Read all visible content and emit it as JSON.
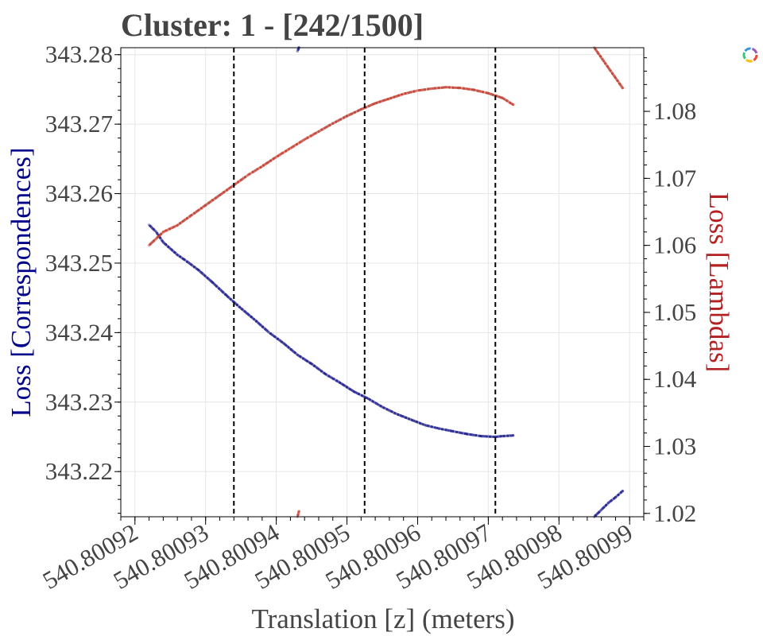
{
  "chart_data": {
    "type": "scatter",
    "title": "Cluster: 1 - [242/1500]",
    "xlabel": "Translation [z] (meters)",
    "ylabel_left": "Loss [Correspondences]",
    "ylabel_right": "Loss [Lambdas]",
    "xlim": [
      540.800918,
      540.800992
    ],
    "ylim_left": [
      343.2135,
      343.281
    ],
    "ylim_right": [
      1.0195,
      1.0895
    ],
    "x_ticks": [
      540.80092,
      540.80093,
      540.80094,
      540.80095,
      540.80096,
      540.80097,
      540.80098,
      540.80099
    ],
    "x_tick_labels": [
      "540.80092",
      "540.80093",
      "540.80094",
      "540.80095",
      "540.80096",
      "540.80097",
      "540.80098",
      "540.80099"
    ],
    "y_left_ticks": [
      343.22,
      343.23,
      343.24,
      343.25,
      343.26,
      343.27,
      343.28
    ],
    "y_left_tick_labels": [
      "343.22",
      "343.23",
      "343.24",
      "343.25",
      "343.26",
      "343.27",
      "343.28"
    ],
    "y_right_ticks": [
      1.02,
      1.03,
      1.04,
      1.05,
      1.06,
      1.07,
      1.08
    ],
    "y_right_tick_labels": [
      "1.02",
      "1.03",
      "1.04",
      "1.05",
      "1.06",
      "1.07",
      "1.08"
    ],
    "grid": true,
    "vlines": [
      540.800934,
      540.8009525,
      540.800971
    ],
    "series": [
      {
        "axis": "left",
        "color": "#1a1a8c",
        "x": [
          540.800922,
          540.800923,
          540.800924,
          540.800926,
          540.800927,
          540.800929,
          540.800931,
          540.800933,
          540.800935,
          540.800937,
          540.800939,
          540.800941,
          540.800943,
          540.800945,
          540.800947,
          540.800949,
          540.800951,
          540.800953,
          540.800955,
          540.800957,
          540.800959,
          540.800961,
          540.800963,
          540.800965,
          540.800967,
          540.800969,
          540.800971,
          540.800972,
          540.8009735
        ],
        "y": [
          343.2555,
          343.2545,
          343.253,
          343.2512,
          343.2505,
          343.249,
          343.2472,
          343.2453,
          343.2435,
          343.2418,
          343.24,
          343.2385,
          343.2368,
          343.2355,
          343.234,
          343.2328,
          343.2315,
          343.2305,
          343.2293,
          343.2283,
          343.2275,
          343.2267,
          343.2262,
          343.2258,
          343.2254,
          343.2251,
          343.225,
          343.2251,
          343.2252
        ]
      },
      {
        "axis": "left",
        "color": "#1a1a8c",
        "x": [
          540.800943,
          540.8009432
        ],
        "y": [
          343.2805,
          343.281
        ]
      },
      {
        "axis": "left",
        "color": "#1a1a8c",
        "x": [
          540.800985,
          540.800986,
          540.800987,
          540.800988,
          540.800989
        ],
        "y": [
          343.2135,
          343.2145,
          343.2155,
          343.2163,
          343.2172
        ]
      },
      {
        "axis": "right",
        "color": "#c0392b",
        "x": [
          540.800922,
          540.800923,
          540.800924,
          540.800926,
          540.800928,
          540.80093,
          540.800932,
          540.800934,
          540.800936,
          540.800938,
          540.80094,
          540.800942,
          540.800944,
          540.800946,
          540.800948,
          540.80095,
          540.800952,
          540.800954,
          540.800956,
          540.800958,
          540.80096,
          540.800962,
          540.800964,
          540.800966,
          540.800968,
          540.80097,
          540.800972,
          540.8009735
        ],
        "y": [
          1.06,
          1.061,
          1.062,
          1.063,
          1.0645,
          1.066,
          1.0675,
          1.069,
          1.0705,
          1.0718,
          1.0732,
          1.0745,
          1.0758,
          1.077,
          1.0782,
          1.0793,
          1.0803,
          1.0812,
          1.0819,
          1.0826,
          1.0831,
          1.0834,
          1.0836,
          1.0835,
          1.0832,
          1.0827,
          1.082,
          1.081
        ]
      },
      {
        "axis": "right",
        "color": "#c0392b",
        "x": [
          540.800943,
          540.8009432
        ],
        "y": [
          1.0195,
          1.0203
        ]
      },
      {
        "axis": "right",
        "color": "#c0392b",
        "x": [
          540.800985,
          540.800986,
          540.800987,
          540.800988,
          540.800989
        ],
        "y": [
          1.0895,
          1.088,
          1.0865,
          1.085,
          1.0835
        ]
      }
    ]
  }
}
